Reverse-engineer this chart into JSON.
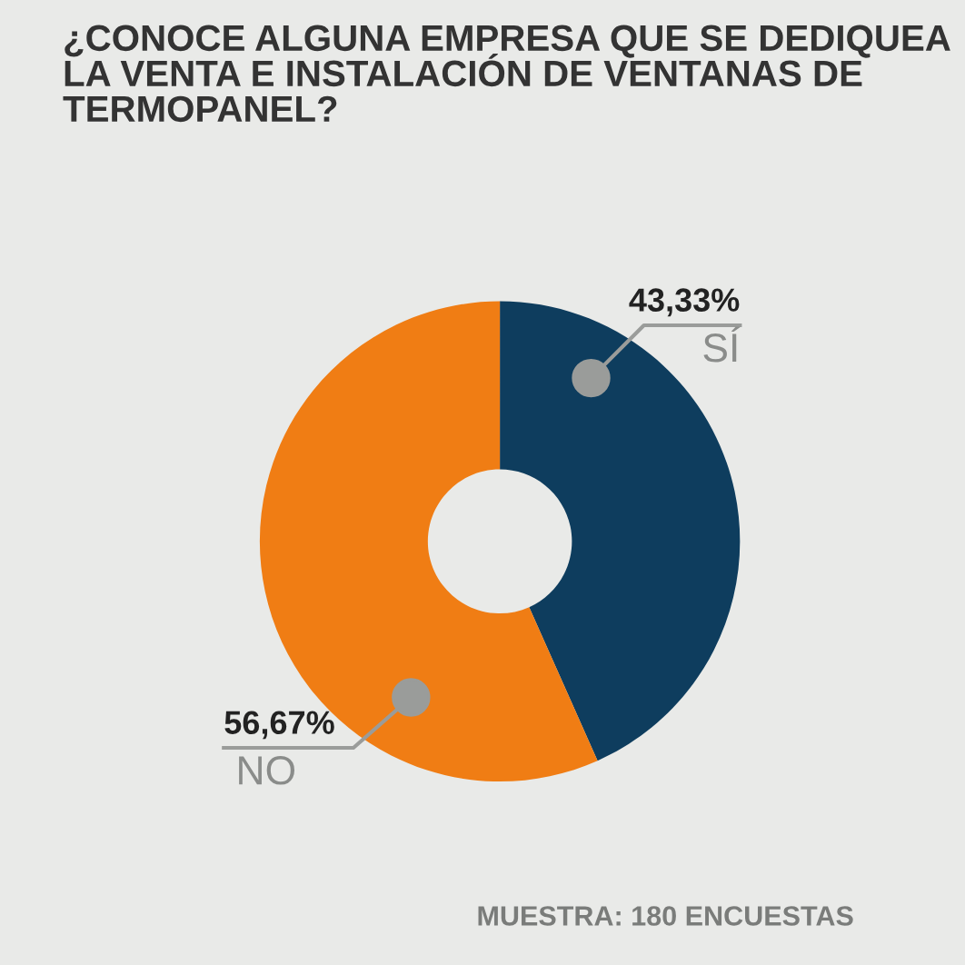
{
  "chart_data": {
    "type": "donut",
    "title": "¿CONOCE ALGUNA EMPRESA QUE SE DEDIQUEA LA VENTA E INSTALACIÓN DE VENTANAS DE TERMOPANEL?",
    "categories": [
      "SÍ",
      "NO"
    ],
    "values": [
      43.33,
      56.67
    ],
    "colors": [
      "#0e3d5e",
      "#f07d14"
    ],
    "value_labels": [
      "43,33%",
      "56,67%"
    ],
    "annotations": [
      "MUESTRA: 180 ENCUESTAS"
    ],
    "legend": false
  }
}
